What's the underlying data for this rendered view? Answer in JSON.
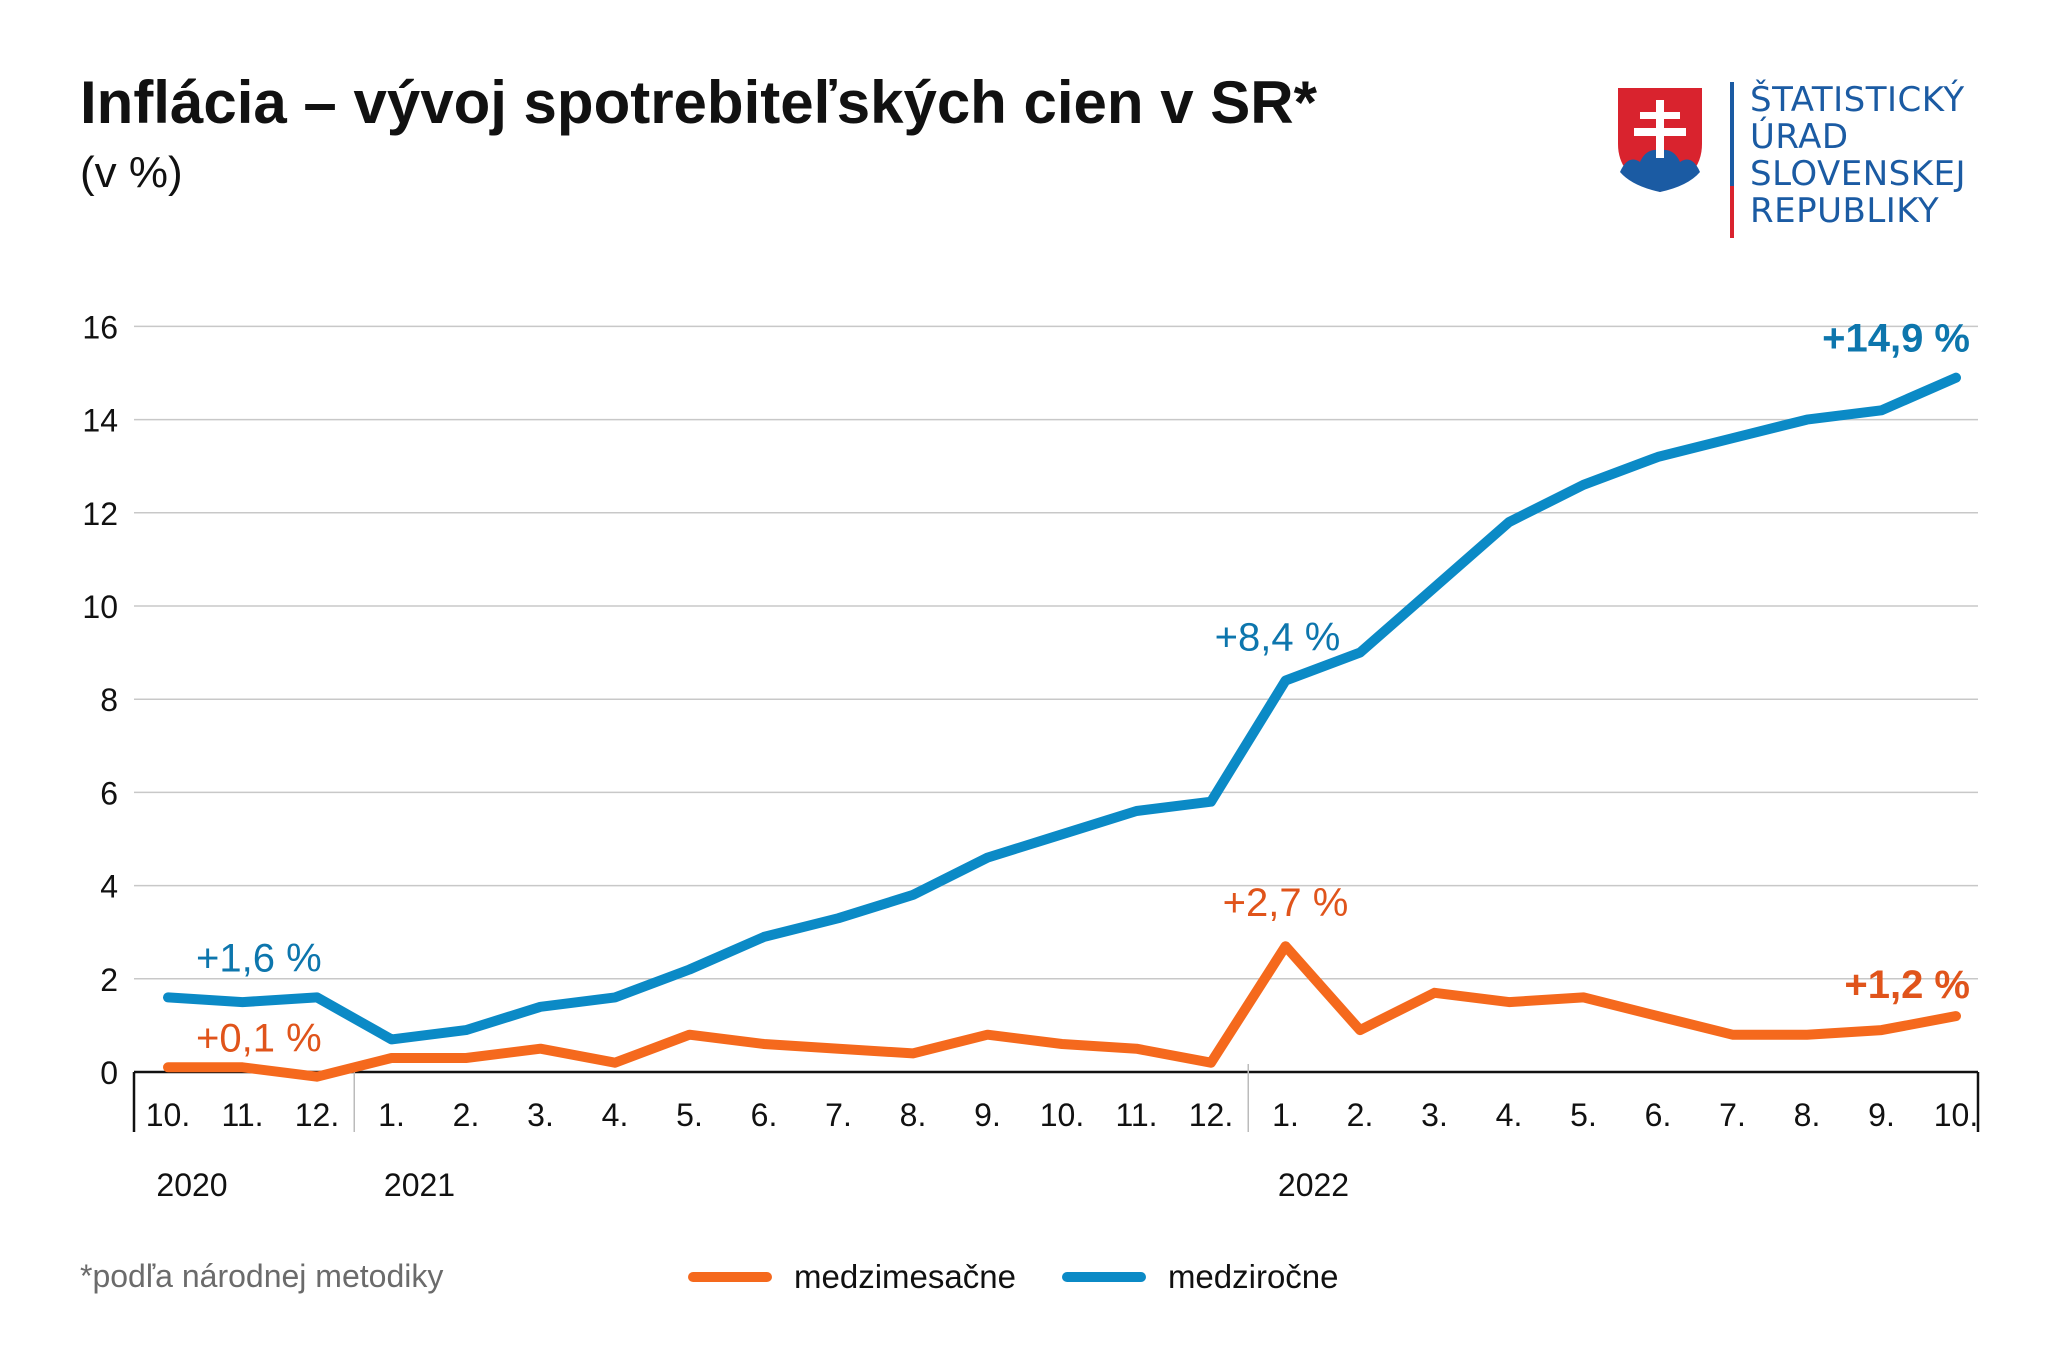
{
  "header": {
    "title": "Inflácia – vývoj spotrebiteľských cien v SR*",
    "subtitle": "(v %)"
  },
  "logo": {
    "lines": [
      "ŠTATISTICKÝ",
      "ÚRAD",
      "SLOVENSKEJ",
      "REPUBLIKY"
    ],
    "colors": {
      "blue": "#1b5ba3",
      "red": "#d9232e"
    }
  },
  "footnote": "*podľa národnej metodiky",
  "colors": {
    "medzimesacne": "#f5691d",
    "medzirocne": "#0b8ac6",
    "annotation_mm": "#e0541b",
    "annotation_mr": "#0d76ad",
    "grid": "#c8c8c8",
    "axis": "#111111"
  },
  "chart_data": {
    "type": "line",
    "title": "Inflácia – vývoj spotrebiteľských cien v SR*",
    "subtitle": "(v %)",
    "ylim": [
      0,
      16
    ],
    "yticks": [
      0,
      2,
      4,
      6,
      8,
      10,
      12,
      14,
      16
    ],
    "grid": true,
    "legend_position": "bottom",
    "categories": [
      "10.",
      "11.",
      "12.",
      "1.",
      "2.",
      "3.",
      "4.",
      "5.",
      "6.",
      "7.",
      "8.",
      "9.",
      "10.",
      "11.",
      "12.",
      "1.",
      "2.",
      "3.",
      "4.",
      "5.",
      "6.",
      "7.",
      "8.",
      "9.",
      "10."
    ],
    "years": [
      {
        "label": "2020",
        "index": 0
      },
      {
        "label": "2021",
        "index": 3
      },
      {
        "label": "2022",
        "index": 15
      }
    ],
    "year_separators": [
      2.5,
      14.5
    ],
    "series": [
      {
        "name": "medzimesačne",
        "color": "#f5691d",
        "values": [
          0.1,
          0.1,
          -0.1,
          0.3,
          0.3,
          0.5,
          0.2,
          0.8,
          0.6,
          0.5,
          0.4,
          0.8,
          0.6,
          0.5,
          0.2,
          2.7,
          0.9,
          1.7,
          1.5,
          1.6,
          1.2,
          0.8,
          0.8,
          0.9,
          1.2
        ]
      },
      {
        "name": "medziročne",
        "color": "#0b8ac6",
        "values": [
          1.6,
          1.5,
          1.6,
          0.7,
          0.9,
          1.4,
          1.6,
          2.2,
          2.9,
          3.3,
          3.8,
          4.6,
          5.1,
          5.6,
          5.8,
          8.4,
          9.0,
          10.4,
          11.8,
          12.6,
          13.2,
          13.6,
          14.0,
          14.2,
          14.9
        ]
      }
    ],
    "annotations": [
      {
        "text": "+1,6 %",
        "series": "medziročne",
        "index": 0,
        "bold": false
      },
      {
        "text": "+0,1 %",
        "series": "medzimesačne",
        "index": 0,
        "bold": false
      },
      {
        "text": "+8,4 %",
        "series": "medziročne",
        "index": 15,
        "bold": false
      },
      {
        "text": "+2,7 %",
        "series": "medzimesačne",
        "index": 15,
        "bold": false
      },
      {
        "text": "+14,9 %",
        "series": "medziročne",
        "index": 24,
        "bold": true
      },
      {
        "text": "+1,2 %",
        "series": "medzimesačne",
        "index": 24,
        "bold": true
      }
    ]
  }
}
